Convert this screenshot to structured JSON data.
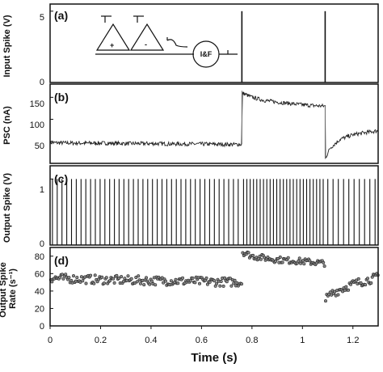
{
  "chart_data": [
    {
      "panel": "(a)",
      "type": "line",
      "ylabel": "Input Spike (V)",
      "yticks": [
        "0",
        "5"
      ],
      "ylim": [
        0,
        5.5
      ],
      "xlim": [
        0,
        1.3
      ],
      "spikes": [
        {
          "x": 0.76,
          "y": 5
        },
        {
          "x": 1.09,
          "y": 5
        }
      ],
      "inset": {
        "plus": "+",
        "minus": "-",
        "neuron": "I&F"
      }
    },
    {
      "panel": "(b)",
      "type": "line",
      "ylabel": "PSC (nA)",
      "yticks": [
        "50",
        "100",
        "150"
      ],
      "ylim": [
        0,
        180
      ],
      "xlim": [
        0,
        1.3
      ],
      "series": [
        {
          "x": [
            0,
            0.1,
            0.2,
            0.3,
            0.4,
            0.5,
            0.6,
            0.7,
            0.76,
            0.761,
            0.8,
            0.85,
            0.9,
            0.95,
            1.0,
            1.05,
            1.09,
            1.091,
            1.11,
            1.15,
            1.2,
            1.25,
            1.3
          ],
          "values": [
            47,
            46,
            46,
            45,
            45,
            44,
            44,
            43,
            43,
            160,
            150,
            143,
            139,
            136,
            133,
            131,
            130,
            12,
            35,
            55,
            65,
            70,
            74
          ]
        }
      ]
    },
    {
      "panel": "(c)",
      "type": "bar",
      "ylabel": "Output Spike (V)",
      "yticks": [
        "0",
        "1"
      ],
      "ylim": [
        0,
        1.2
      ],
      "xlim": [
        0,
        1.3
      ],
      "spike_rates": [
        {
          "from": 0.0,
          "to": 0.76,
          "rate": 53
        },
        {
          "from": 0.76,
          "to": 1.09,
          "rate": 76
        },
        {
          "from": 1.09,
          "to": 1.3,
          "rate": 48
        }
      ]
    },
    {
      "panel": "(d)",
      "type": "scatter",
      "ylabel": "Output Spike Rate (s⁻¹)",
      "yticks": [
        "0",
        "20",
        "40",
        "60",
        "80"
      ],
      "ylim": [
        0,
        90
      ],
      "xlim": [
        0,
        1.3
      ],
      "xticks": [
        "0",
        "0.2",
        "0.4",
        "0.6",
        "0.8",
        "1",
        "1.2"
      ],
      "xlabel": "Time (s)",
      "trend": {
        "x": [
          0,
          0.2,
          0.4,
          0.6,
          0.76,
          0.761,
          0.8,
          0.9,
          1.0,
          1.09,
          1.091,
          1.12,
          1.2,
          1.3
        ],
        "values": [
          55,
          53,
          52,
          51,
          50,
          85,
          80,
          76,
          74,
          72,
          30,
          38,
          48,
          56
        ]
      }
    }
  ]
}
